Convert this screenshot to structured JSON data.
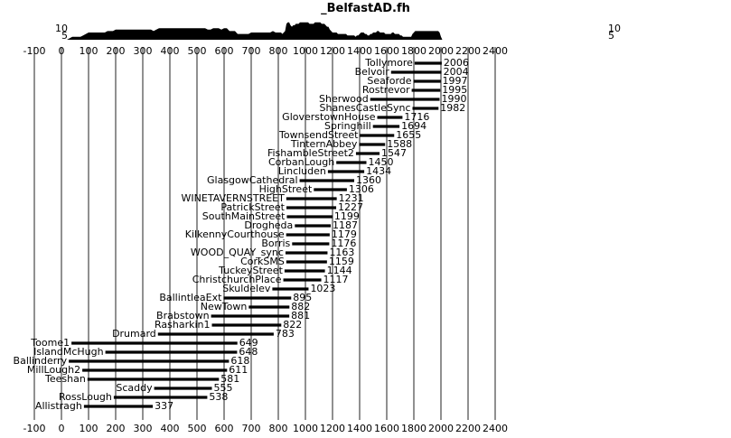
{
  "chart_data": {
    "type": "bar",
    "title": "_BelfastAD.fh",
    "xlim": [
      -100,
      2400
    ],
    "x_ticks": [
      -100,
      0,
      100,
      200,
      300,
      400,
      500,
      600,
      700,
      800,
      1000,
      1200,
      1400,
      1600,
      1800,
      2000,
      2200,
      2400
    ],
    "grid": true,
    "sample_depth": {
      "left_labels": [
        "10",
        "5"
      ],
      "right_labels": [
        "10",
        "5"
      ]
    },
    "series": [
      {
        "name": "Tollymore",
        "start": 1806,
        "end": 2006
      },
      {
        "name": "Belvoir",
        "start": 1632,
        "end": 2004
      },
      {
        "name": "Seaforde",
        "start": 1797,
        "end": 1997
      },
      {
        "name": "Rostrevor",
        "start": 1784,
        "end": 1995
      },
      {
        "name": "Sherwood",
        "start": 1478,
        "end": 1990
      },
      {
        "name": "ShanesCastleSync",
        "start": 1790,
        "end": 1982
      },
      {
        "name": "GloverstownHouse",
        "start": 1530,
        "end": 1716
      },
      {
        "name": "Springhill",
        "start": 1498,
        "end": 1694
      },
      {
        "name": "TownsendStreet",
        "start": 1403,
        "end": 1655
      },
      {
        "name": "TinternAbbey",
        "start": 1396,
        "end": 1588
      },
      {
        "name": "FishambleStreet2",
        "start": 1373,
        "end": 1547
      },
      {
        "name": "CorbanLough",
        "start": 1228,
        "end": 1450
      },
      {
        "name": "Lincluden",
        "start": 1166,
        "end": 1434
      },
      {
        "name": "GlasgowCathedral",
        "start": 957,
        "end": 1360
      },
      {
        "name": "HighStreet",
        "start": 1062,
        "end": 1306
      },
      {
        "name": "WINETAVERNSTREET",
        "start": 859,
        "end": 1231
      },
      {
        "name": "PatrickStreet",
        "start": 860,
        "end": 1227
      },
      {
        "name": "SouthMainStreet",
        "start": 863,
        "end": 1199
      },
      {
        "name": "Drogheda",
        "start": 922,
        "end": 1187
      },
      {
        "name": "KilkennyCourthouse",
        "start": 858,
        "end": 1179
      },
      {
        "name": "Borris",
        "start": 902,
        "end": 1176
      },
      {
        "name": "WOOD_QUAY_sync",
        "start": 853,
        "end": 1163
      },
      {
        "name": "CorkSMS",
        "start": 859,
        "end": 1159
      },
      {
        "name": "TuckeyStreet",
        "start": 846,
        "end": 1144
      },
      {
        "name": "ChristchurchPlace",
        "start": 837,
        "end": 1117
      },
      {
        "name": "Skuldelev",
        "start": 778,
        "end": 1023
      },
      {
        "name": "BallintleaExt",
        "start": 598,
        "end": 895
      },
      {
        "name": "NewTown",
        "start": 691,
        "end": 882
      },
      {
        "name": "Brabstown",
        "start": 552,
        "end": 881
      },
      {
        "name": "Rasharkin1",
        "start": 555,
        "end": 822
      },
      {
        "name": "Drumard",
        "start": 356,
        "end": 783
      },
      {
        "name": "Toome1",
        "start": 37,
        "end": 649
      },
      {
        "name": "IslandMcHugh",
        "start": 162,
        "end": 648
      },
      {
        "name": "Ballinderry",
        "start": 27,
        "end": 618
      },
      {
        "name": "MillLough2",
        "start": 77,
        "end": 611
      },
      {
        "name": "Teeshan",
        "start": 96,
        "end": 581
      },
      {
        "name": "Scaddy",
        "start": 342,
        "end": 555
      },
      {
        "name": "RossLough",
        "start": 193,
        "end": 538
      },
      {
        "name": "Allistragh",
        "start": 83,
        "end": 337
      }
    ]
  }
}
